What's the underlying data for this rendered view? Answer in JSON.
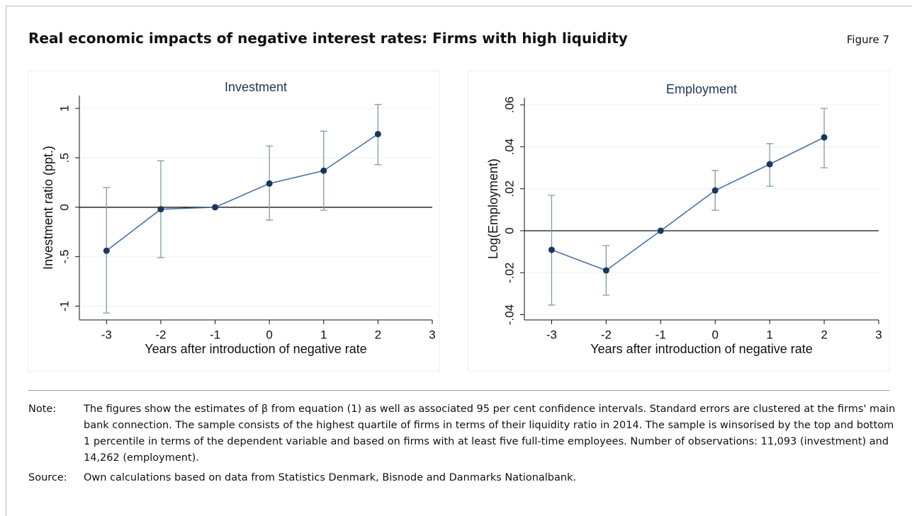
{
  "header": {
    "title": "Real economic impacts of negative interest rates: Firms with high liquidity",
    "figure": "Figure 7"
  },
  "chart_data": [
    {
      "type": "line",
      "title": "Investment",
      "x_label": "Years after introduction of negative rate",
      "y_label": "Investment ratio (ppt.)",
      "x": [
        -3,
        -2,
        -1,
        0,
        1,
        2
      ],
      "values": [
        -0.44,
        -0.02,
        0,
        0.24,
        0.37,
        0.74
      ],
      "lower": [
        -1.07,
        -0.51,
        null,
        -0.13,
        -0.03,
        0.43
      ],
      "upper": [
        0.2,
        0.47,
        null,
        0.62,
        0.77,
        1.04
      ],
      "color": "#4a72a8",
      "marker_color": "#1a3560",
      "errorbar_color": "#7f9f98",
      "xlim": [
        -3.5,
        3
      ],
      "xticks": [
        -3,
        -2,
        -1,
        0,
        1,
        2,
        3
      ],
      "ylim": [
        -1.14,
        1.13
      ],
      "yticks": [
        -1,
        {
          "value": -0.5,
          "label": "-.5"
        },
        0,
        {
          "value": 0.5,
          "label": ".5"
        },
        1
      ],
      "grid": true
    },
    {
      "type": "line",
      "title": "Employment",
      "x_label": "Years after introduction of negative rate",
      "y_label": "Log(Employment)",
      "x": [
        -3,
        -2,
        -1,
        0,
        1,
        2
      ],
      "values": [
        -0.0091,
        -0.0189,
        0,
        0.0192,
        0.0317,
        0.0445
      ],
      "lower": [
        -0.0354,
        -0.0307,
        null,
        0.0098,
        0.0212,
        0.03
      ],
      "upper": [
        0.0169,
        -0.0071,
        null,
        0.0287,
        0.0415,
        0.0583
      ],
      "color": "#4a72a8",
      "marker_color": "#1a3560",
      "errorbar_color": "#7f9f98",
      "xlim": [
        -3.5,
        3
      ],
      "xticks": [
        -3,
        -2,
        -1,
        0,
        1,
        2,
        3
      ],
      "ylim": [
        -0.0425,
        0.0634
      ],
      "yticks": [
        {
          "value": -0.04,
          "label": "-.04"
        },
        {
          "value": -0.02,
          "label": "-.02"
        },
        0,
        {
          "value": 0.02,
          "label": ".02"
        },
        {
          "value": 0.04,
          "label": ".04"
        },
        {
          "value": 0.06,
          "label": ".06"
        }
      ],
      "grid": true
    }
  ],
  "notes": {
    "note_label": "Note:",
    "note": "The figures show the estimates of β from equation (1) as well as associated 95 per cent confidence intervals. Standard errors are clustered at the firms' main bank connection. The sample consists of the highest quartile of firms in terms of their liquidity ratio in 2014. The sample is winsorised by the top and bottom 1 percentile in terms of the dependent variable and based on firms with at least five full-time employees. Number of observations: 11,093 (investment) and 14,262 (employment).",
    "source_label": "Source:",
    "source": "Own calculations based on data from Statistics Denmark, Bisnode and Danmarks Nationalbank."
  }
}
